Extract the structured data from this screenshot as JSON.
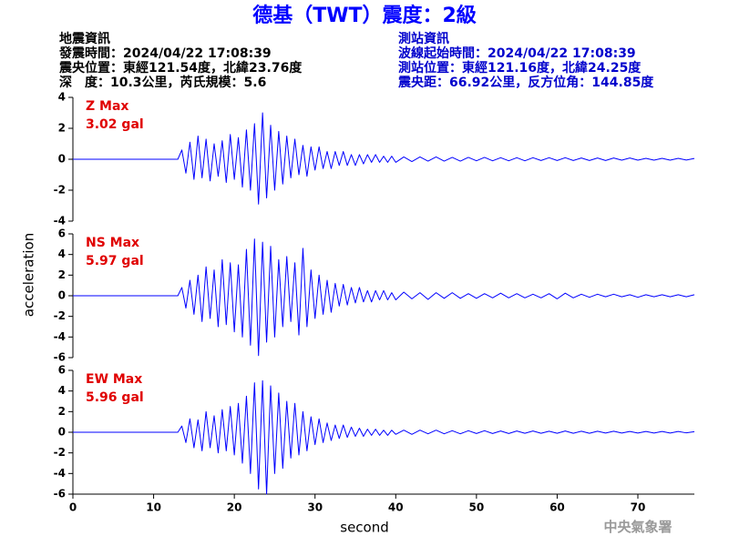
{
  "header": {
    "title": "德基（TWT）震度：2級",
    "left": [
      "地震資訊",
      "發震時間：2024/04/22 17:08:39",
      "震央位置：東經121.54度，北緯23.76度",
      "深　度：10.3公里，芮氏規模：5.6"
    ],
    "right": [
      "測站資訊",
      "波線起始時間：2024/04/22 17:08:39",
      "測站位置：東經121.16度，北緯24.25度",
      "震央距：66.92公里，反方位角：144.85度"
    ],
    "xlabel": "second",
    "ylabel": "acceleration",
    "watermark": "中央氣象署"
  },
  "chart_data": [
    {
      "type": "line",
      "annotation": [
        "Z Max",
        "3.02 gal"
      ],
      "color": "#0000ff",
      "xlim": [
        0,
        77
      ],
      "ylim": [
        -4,
        4
      ],
      "yticks": [
        -4,
        -2,
        0,
        2,
        4
      ],
      "x": [
        0,
        13,
        13.5,
        14,
        14.5,
        15,
        15.5,
        16,
        16.5,
        17,
        17.5,
        18,
        18.5,
        19,
        19.5,
        20,
        20.5,
        21,
        21.5,
        22,
        22.5,
        23,
        23.5,
        24,
        24.5,
        25,
        25.5,
        26,
        26.5,
        27,
        27.5,
        28,
        28.5,
        29,
        29.5,
        30,
        30.5,
        31,
        31.5,
        32,
        32.5,
        33,
        33.5,
        34,
        34.5,
        35,
        35.5,
        36,
        36.5,
        37,
        37.5,
        38,
        38.5,
        39,
        39.5,
        40,
        41,
        42,
        43,
        44,
        45,
        46,
        47,
        48,
        49,
        50,
        51,
        52,
        53,
        54,
        55,
        56,
        57,
        58,
        59,
        60,
        61,
        62,
        63,
        64,
        65,
        66,
        67,
        68,
        69,
        70,
        71,
        72,
        73,
        74,
        75,
        76,
        77
      ],
      "values": [
        0,
        0,
        0.6,
        -0.9,
        1.1,
        -1.3,
        1.5,
        -1.2,
        1.3,
        -1.4,
        1.0,
        -1.1,
        1.2,
        -1.5,
        1.6,
        -1.3,
        1.4,
        -1.8,
        1.9,
        -2.0,
        2.3,
        -2.9,
        3.0,
        -2.5,
        2.2,
        -2.0,
        1.8,
        -1.6,
        1.5,
        -1.2,
        1.3,
        -1.0,
        0.9,
        -1.1,
        0.8,
        -0.7,
        0.8,
        -0.6,
        0.5,
        -0.6,
        0.5,
        -0.4,
        0.5,
        -0.4,
        0.3,
        -0.4,
        0.3,
        -0.3,
        0.3,
        -0.2,
        0.3,
        -0.2,
        0.2,
        -0.2,
        0.2,
        -0.2,
        0.15,
        -0.15,
        0.15,
        -0.12,
        0.15,
        -0.12,
        0.12,
        -0.12,
        0.12,
        -0.1,
        0.12,
        -0.1,
        0.1,
        -0.1,
        0.1,
        -0.1,
        0.1,
        -0.08,
        0.1,
        -0.08,
        0.1,
        -0.08,
        0.08,
        -0.08,
        0.08,
        -0.08,
        0.08,
        -0.06,
        0.08,
        -0.06,
        0.06,
        -0.06,
        0.06,
        -0.06,
        0.06,
        -0.05,
        0.05
      ]
    },
    {
      "type": "line",
      "annotation": [
        "NS Max",
        "5.97 gal"
      ],
      "color": "#0000ff",
      "xlim": [
        0,
        77
      ],
      "ylim": [
        -6,
        6
      ],
      "yticks": [
        -6,
        -4,
        -2,
        0,
        2,
        4,
        6
      ],
      "x": [
        0,
        13,
        13.5,
        14,
        14.5,
        15,
        15.5,
        16,
        16.5,
        17,
        17.5,
        18,
        18.5,
        19,
        19.5,
        20,
        20.5,
        21,
        21.5,
        22,
        22.5,
        23,
        23.5,
        24,
        24.5,
        25,
        25.5,
        26,
        26.5,
        27,
        27.5,
        28,
        28.5,
        29,
        29.5,
        30,
        30.5,
        31,
        31.5,
        32,
        32.5,
        33,
        33.5,
        34,
        34.5,
        35,
        35.5,
        36,
        36.5,
        37,
        37.5,
        38,
        38.5,
        39,
        39.5,
        40,
        41,
        42,
        43,
        44,
        45,
        46,
        47,
        48,
        49,
        50,
        51,
        52,
        53,
        54,
        55,
        56,
        57,
        58,
        59,
        60,
        61,
        62,
        63,
        64,
        65,
        66,
        67,
        68,
        69,
        70,
        71,
        72,
        73,
        74,
        75,
        76,
        77
      ],
      "values": [
        0,
        0,
        0.8,
        -1.2,
        1.5,
        -1.8,
        2.0,
        -2.5,
        2.8,
        -2.2,
        2.5,
        -3.0,
        3.5,
        -2.8,
        3.2,
        -3.5,
        3.0,
        -4.0,
        4.5,
        -4.8,
        5.5,
        -5.8,
        5.2,
        -4.5,
        4.8,
        -4.0,
        3.5,
        -3.0,
        3.8,
        -2.5,
        3.2,
        -3.8,
        4.6,
        -3.0,
        2.5,
        -2.2,
        2.0,
        -1.8,
        1.5,
        -1.6,
        1.2,
        -1.0,
        1.1,
        -0.9,
        0.8,
        -0.7,
        0.8,
        -0.6,
        0.5,
        -0.6,
        0.5,
        -0.4,
        0.5,
        -0.4,
        0.3,
        -0.4,
        0.35,
        -0.3,
        0.3,
        -0.35,
        0.3,
        -0.25,
        0.3,
        -0.25,
        0.2,
        -0.25,
        0.2,
        -0.2,
        0.25,
        -0.2,
        0.2,
        -0.2,
        0.15,
        -0.2,
        0.2,
        -0.3,
        0.25,
        -0.2,
        0.15,
        -0.15,
        0.15,
        -0.1,
        0.15,
        -0.1,
        0.1,
        -0.15,
        0.1,
        -0.1,
        0.1,
        -0.1,
        0.1,
        -0.1,
        0.1
      ]
    },
    {
      "type": "line",
      "annotation": [
        "EW Max",
        "5.96 gal"
      ],
      "color": "#0000ff",
      "xlim": [
        0,
        77
      ],
      "ylim": [
        -6,
        6
      ],
      "yticks": [
        -6,
        -4,
        -2,
        0,
        2,
        4,
        6
      ],
      "xticks": [
        0,
        10,
        20,
        30,
        40,
        50,
        60,
        70
      ],
      "x": [
        0,
        13,
        13.5,
        14,
        14.5,
        15,
        15.5,
        16,
        16.5,
        17,
        17.5,
        18,
        18.5,
        19,
        19.5,
        20,
        20.5,
        21,
        21.5,
        22,
        22.5,
        23,
        23.5,
        24,
        24.5,
        25,
        25.5,
        26,
        26.5,
        27,
        27.5,
        28,
        28.5,
        29,
        29.5,
        30,
        30.5,
        31,
        31.5,
        32,
        32.5,
        33,
        33.5,
        34,
        34.5,
        35,
        35.5,
        36,
        36.5,
        37,
        37.5,
        38,
        38.5,
        39,
        39.5,
        40,
        41,
        42,
        43,
        44,
        45,
        46,
        47,
        48,
        49,
        50,
        51,
        52,
        53,
        54,
        55,
        56,
        57,
        58,
        59,
        60,
        61,
        62,
        63,
        64,
        65,
        66,
        67,
        68,
        69,
        70,
        71,
        72,
        73,
        74,
        75,
        76,
        77
      ],
      "values": [
        0,
        0,
        0.6,
        -1.0,
        1.3,
        -1.5,
        1.2,
        -1.8,
        2.0,
        -1.5,
        1.6,
        -2.0,
        2.2,
        -1.8,
        2.5,
        -2.2,
        2.8,
        -3.0,
        3.5,
        -4.0,
        4.8,
        -5.5,
        5.0,
        -6.0,
        4.5,
        -4.0,
        3.8,
        -3.5,
        3.0,
        -2.5,
        2.8,
        -2.2,
        2.0,
        -1.8,
        1.5,
        -1.2,
        1.3,
        -1.0,
        0.9,
        -0.8,
        0.7,
        -0.6,
        0.7,
        -0.5,
        0.5,
        -0.4,
        0.4,
        -0.4,
        0.3,
        -0.3,
        0.3,
        -0.3,
        0.2,
        -0.3,
        0.2,
        -0.2,
        0.2,
        -0.2,
        0.2,
        -0.15,
        0.2,
        -0.15,
        0.15,
        -0.15,
        0.15,
        -0.12,
        0.15,
        -0.12,
        0.12,
        -0.12,
        0.12,
        -0.1,
        0.12,
        -0.1,
        0.1,
        -0.1,
        0.12,
        -0.1,
        0.1,
        -0.1,
        0.1,
        -0.08,
        0.1,
        -0.08,
        0.08,
        -0.08,
        0.08,
        -0.08,
        0.08,
        -0.08,
        0.08,
        -0.06,
        0.06
      ]
    }
  ]
}
